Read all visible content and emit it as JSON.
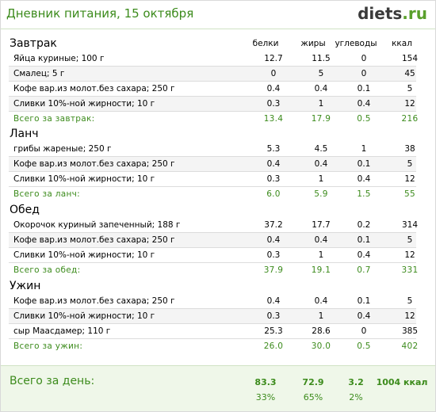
{
  "header": {
    "title": "Дневник питания, 15 октября",
    "logo_main": "diets",
    "logo_tld": ".ru"
  },
  "columns": [
    "белки",
    "жиры",
    "углеводы",
    "ккал"
  ],
  "meals": [
    {
      "title": "Завтрак",
      "items": [
        {
          "name": "Яйца куриные; 100 г",
          "b": "12.7",
          "z": "11.5",
          "u": "0",
          "k": "154"
        },
        {
          "name": "Смалец; 5 г",
          "b": "0",
          "z": "5",
          "u": "0",
          "k": "45"
        },
        {
          "name": "Кофе вар.из молот.без сахара; 250 г",
          "b": "0.4",
          "z": "0.4",
          "u": "0.1",
          "k": "5"
        },
        {
          "name": "Сливки 10%-ной жирности; 10 г",
          "b": "0.3",
          "z": "1",
          "u": "0.4",
          "k": "12"
        }
      ],
      "total": {
        "name": "Всего за завтрак:",
        "b": "13.4",
        "z": "17.9",
        "u": "0.5",
        "k": "216"
      }
    },
    {
      "title": "Ланч",
      "items": [
        {
          "name": "грибы жареные; 250 г",
          "b": "5.3",
          "z": "4.5",
          "u": "1",
          "k": "38"
        },
        {
          "name": "Кофе вар.из молот.без сахара; 250 г",
          "b": "0.4",
          "z": "0.4",
          "u": "0.1",
          "k": "5"
        },
        {
          "name": "Сливки 10%-ной жирности; 10 г",
          "b": "0.3",
          "z": "1",
          "u": "0.4",
          "k": "12"
        }
      ],
      "total": {
        "name": "Всего за ланч:",
        "b": "6.0",
        "z": "5.9",
        "u": "1.5",
        "k": "55"
      }
    },
    {
      "title": "Обед",
      "items": [
        {
          "name": "Окорочок куриный запеченный; 188 г",
          "b": "37.2",
          "z": "17.7",
          "u": "0.2",
          "k": "314"
        },
        {
          "name": "Кофе вар.из молот.без сахара; 250 г",
          "b": "0.4",
          "z": "0.4",
          "u": "0.1",
          "k": "5"
        },
        {
          "name": "Сливки 10%-ной жирности; 10 г",
          "b": "0.3",
          "z": "1",
          "u": "0.4",
          "k": "12"
        }
      ],
      "total": {
        "name": "Всего за обед:",
        "b": "37.9",
        "z": "19.1",
        "u": "0.7",
        "k": "331"
      }
    },
    {
      "title": "Ужин",
      "items": [
        {
          "name": "Кофе вар.из молот.без сахара; 250 г",
          "b": "0.4",
          "z": "0.4",
          "u": "0.1",
          "k": "5"
        },
        {
          "name": "Сливки 10%-ной жирности; 10 г",
          "b": "0.3",
          "z": "1",
          "u": "0.4",
          "k": "12"
        },
        {
          "name": "сыр Маасдамер; 110 г",
          "b": "25.3",
          "z": "28.6",
          "u": "0",
          "k": "385"
        }
      ],
      "total": {
        "name": "Всего за ужин:",
        "b": "26.0",
        "z": "30.0",
        "u": "0.5",
        "k": "402"
      }
    }
  ],
  "day_total": {
    "label": "Всего за день:",
    "b": "83.3",
    "z": "72.9",
    "u": "3.2",
    "k": "1004 ккал",
    "b_pct": "33%",
    "z_pct": "65%",
    "u_pct": "2%"
  },
  "colors": {
    "accent_green": "#3c8b1c",
    "day_bg": "#eff7e9"
  }
}
